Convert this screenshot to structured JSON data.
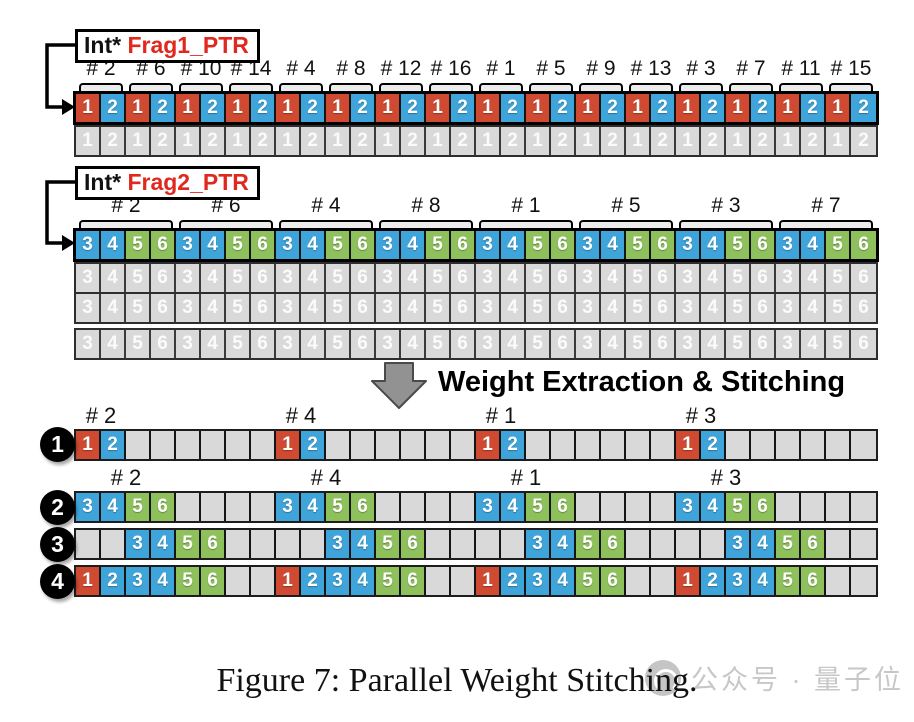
{
  "colors": {
    "red": "#cf4a31",
    "blue": "#3ea4da",
    "green": "#8ec05c",
    "gray_cell": "#d9d9d9"
  },
  "value_colors": {
    "1": "red",
    "2": "blue",
    "3": "blue",
    "4": "blue",
    "5": "green",
    "6": "green"
  },
  "frag1": {
    "label_type": "Int*",
    "label_name": "Frag1_PTR",
    "headers": [
      "# 2",
      "# 6",
      "# 10",
      "# 14",
      "# 4",
      "# 8",
      "# 12",
      "# 16",
      "# 1",
      "# 5",
      "# 9",
      "# 13",
      "# 3",
      "# 7",
      "# 11",
      "# 15"
    ],
    "group_values": [
      "1",
      "2"
    ],
    "num_groups": 16,
    "ghost_rows": 1
  },
  "frag2": {
    "label_type": "Int*",
    "label_name": "Frag2_PTR",
    "headers": [
      "# 2",
      "# 6",
      "# 4",
      "# 8",
      "# 1",
      "# 5",
      "# 3",
      "# 7"
    ],
    "group_values": [
      "3",
      "4",
      "5",
      "6"
    ],
    "num_groups": 8,
    "ghost_rows": 3
  },
  "transform": {
    "label": "Weight Extraction & Stitching"
  },
  "result": {
    "num_cells": 32,
    "rows": [
      {
        "badge": "1",
        "groups": [
          {
            "header": "# 2",
            "start": 0,
            "values": [
              "1",
              "2"
            ]
          },
          {
            "header": "# 4",
            "start": 8,
            "values": [
              "1",
              "2"
            ]
          },
          {
            "header": "# 1",
            "start": 16,
            "values": [
              "1",
              "2"
            ]
          },
          {
            "header": "# 3",
            "start": 24,
            "values": [
              "1",
              "2"
            ]
          }
        ]
      },
      {
        "badge": "2",
        "groups": [
          {
            "header": "# 2",
            "start": 0,
            "values": [
              "3",
              "4",
              "5",
              "6"
            ]
          },
          {
            "header": "# 4",
            "start": 8,
            "values": [
              "3",
              "4",
              "5",
              "6"
            ]
          },
          {
            "header": "# 1",
            "start": 16,
            "values": [
              "3",
              "4",
              "5",
              "6"
            ]
          },
          {
            "header": "# 3",
            "start": 24,
            "values": [
              "3",
              "4",
              "5",
              "6"
            ]
          }
        ]
      },
      {
        "badge": "3",
        "groups": [
          {
            "start": 2,
            "values": [
              "3",
              "4",
              "5",
              "6"
            ]
          },
          {
            "start": 10,
            "values": [
              "3",
              "4",
              "5",
              "6"
            ]
          },
          {
            "start": 18,
            "values": [
              "3",
              "4",
              "5",
              "6"
            ]
          },
          {
            "start": 26,
            "values": [
              "3",
              "4",
              "5",
              "6"
            ]
          }
        ]
      },
      {
        "badge": "4",
        "groups": [
          {
            "start": 0,
            "values": [
              "1",
              "2",
              "3",
              "4",
              "5",
              "6"
            ]
          },
          {
            "start": 8,
            "values": [
              "1",
              "2",
              "3",
              "4",
              "5",
              "6"
            ]
          },
          {
            "start": 16,
            "values": [
              "1",
              "2",
              "3",
              "4",
              "5",
              "6"
            ]
          },
          {
            "start": 24,
            "values": [
              "1",
              "2",
              "3",
              "4",
              "5",
              "6"
            ]
          }
        ]
      }
    ]
  },
  "caption": "Figure 7: Parallel Weight Stitching.",
  "watermark": "公众号 · 量子位"
}
